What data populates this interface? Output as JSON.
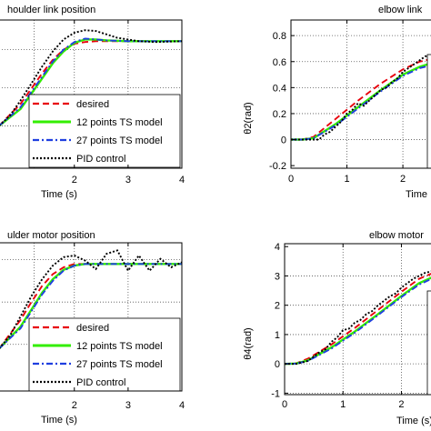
{
  "colors": {
    "desired": "#e8000b",
    "ts12": "#33ee00",
    "ts27": "#1f3fe0",
    "pid": "#000000",
    "grid": "#555555"
  },
  "chart_data": [
    {
      "type": "line",
      "title": "houlder link position",
      "xlabel": "Time (s)",
      "ylabel": "",
      "x_ticks": [
        "2",
        "3",
        "4"
      ],
      "y_ticks": [],
      "xlim": [
        0.6,
        4
      ],
      "ylim": [
        -0.5,
        1.25
      ],
      "grid": true,
      "legend": {
        "placement": "bottom-right",
        "entries": [
          "desired",
          "12 points TS model",
          "27 points TS model",
          "PID control"
        ]
      },
      "series": [
        {
          "name": "desired",
          "style": "dashed",
          "color_key": "desired",
          "x": [
            0.6,
            1.0,
            1.2,
            1.4,
            1.6,
            1.8,
            2.0,
            2.2,
            2.4,
            2.6,
            3.0,
            3.5,
            4.0
          ],
          "y": [
            0.0,
            0.26,
            0.44,
            0.62,
            0.78,
            0.9,
            0.97,
            0.99,
            1.0,
            1.0,
            1.0,
            1.0,
            1.0
          ]
        },
        {
          "name": "12 points TS model",
          "style": "solid",
          "color_key": "ts12",
          "x": [
            0.6,
            1.0,
            1.2,
            1.4,
            1.6,
            1.8,
            2.0,
            2.2,
            2.4,
            2.6,
            3.0,
            3.5,
            4.0
          ],
          "y": [
            0.0,
            0.2,
            0.38,
            0.56,
            0.74,
            0.88,
            0.98,
            1.02,
            1.02,
            1.01,
            1.0,
            1.0,
            1.0
          ]
        },
        {
          "name": "27 points TS model",
          "style": "dashdot",
          "color_key": "ts27",
          "x": [
            0.6,
            1.0,
            1.2,
            1.4,
            1.6,
            1.8,
            2.0,
            2.2,
            2.4,
            2.6,
            3.0,
            3.5,
            4.0
          ],
          "y": [
            0.0,
            0.22,
            0.4,
            0.58,
            0.76,
            0.9,
            0.99,
            1.03,
            1.02,
            1.01,
            1.0,
            1.0,
            1.0
          ]
        },
        {
          "name": "PID control",
          "style": "dotted",
          "color_key": "pid",
          "x": [
            0.6,
            0.8,
            1.0,
            1.2,
            1.4,
            1.6,
            1.8,
            2.0,
            2.2,
            2.4,
            2.6,
            2.8,
            3.0,
            3.2,
            3.5,
            4.0
          ],
          "y": [
            0.0,
            0.12,
            0.3,
            0.5,
            0.7,
            0.88,
            1.02,
            1.1,
            1.13,
            1.12,
            1.08,
            1.04,
            1.02,
            1.0,
            0.99,
            1.0
          ]
        }
      ]
    },
    {
      "type": "line",
      "title": "elbow link",
      "xlabel": "Time",
      "ylabel": "θ2(rad)",
      "x_ticks": [
        "0",
        "1",
        "2"
      ],
      "y_ticks": [
        "-0.2",
        "0",
        "0.2",
        "0.4",
        "0.6",
        "0.8"
      ],
      "xlim": [
        0,
        2.6
      ],
      "ylim": [
        -0.22,
        0.92
      ],
      "grid": true,
      "legend": {
        "placement": "right",
        "entries": []
      },
      "series": [
        {
          "name": "desired",
          "style": "dashed",
          "color_key": "desired",
          "x": [
            0,
            0.2,
            0.4,
            0.8,
            1.2,
            1.6,
            2.0,
            2.3,
            2.6
          ],
          "y": [
            0,
            0,
            0.02,
            0.16,
            0.3,
            0.43,
            0.54,
            0.6,
            0.63
          ]
        },
        {
          "name": "12 points TS model",
          "style": "solid",
          "color_key": "ts12",
          "x": [
            0,
            0.2,
            0.4,
            0.8,
            1.2,
            1.6,
            2.0,
            2.3,
            2.6
          ],
          "y": [
            0,
            0,
            0.01,
            0.12,
            0.25,
            0.38,
            0.5,
            0.56,
            0.6
          ]
        },
        {
          "name": "27 points TS model",
          "style": "dashdot",
          "color_key": "ts27",
          "x": [
            0,
            0.2,
            0.4,
            0.8,
            1.2,
            1.6,
            2.0,
            2.3,
            2.6
          ],
          "y": [
            0,
            0,
            0.01,
            0.11,
            0.24,
            0.37,
            0.49,
            0.55,
            0.58
          ]
        },
        {
          "name": "PID control",
          "style": "dotted",
          "color_key": "pid",
          "x": [
            0,
            0.3,
            0.5,
            0.6,
            0.7,
            0.8,
            0.9,
            1.0,
            1.1,
            1.2,
            1.3,
            1.4,
            1.5,
            1.6,
            1.7,
            1.8,
            1.9,
            2.0,
            2.2,
            2.4,
            2.6
          ],
          "y": [
            0,
            0,
            0.0,
            0.04,
            0.06,
            0.1,
            0.14,
            0.2,
            0.23,
            0.28,
            0.26,
            0.3,
            0.34,
            0.38,
            0.4,
            0.44,
            0.47,
            0.52,
            0.58,
            0.64,
            0.66
          ]
        }
      ]
    },
    {
      "type": "line",
      "title": "ulder motor position",
      "xlabel": "Time (s)",
      "ylabel": "",
      "x_ticks": [
        "2",
        "3",
        "4"
      ],
      "y_ticks": [],
      "xlim": [
        0.6,
        4
      ],
      "ylim": [
        -0.5,
        1.25
      ],
      "grid": true,
      "legend": {
        "placement": "bottom-right",
        "entries": [
          "desired",
          "12 points TS model",
          "27 points TS model",
          "PID control"
        ]
      },
      "series": [
        {
          "name": "desired",
          "style": "dashed",
          "color_key": "desired",
          "x": [
            0.6,
            1.0,
            1.2,
            1.4,
            1.6,
            1.8,
            2.0,
            2.2,
            2.4,
            3.0,
            3.5,
            4.0
          ],
          "y": [
            0.0,
            0.34,
            0.55,
            0.74,
            0.88,
            0.96,
            1.0,
            1.0,
            1.0,
            1.0,
            1.0,
            1.0
          ]
        },
        {
          "name": "12 points TS model",
          "style": "solid",
          "color_key": "ts12",
          "x": [
            0.6,
            1.0,
            1.2,
            1.4,
            1.6,
            1.8,
            2.0,
            2.2,
            2.4,
            3.0,
            3.5,
            4.0
          ],
          "y": [
            0.0,
            0.26,
            0.46,
            0.66,
            0.82,
            0.93,
            0.98,
            1.0,
            1.0,
            1.0,
            1.0,
            1.0
          ]
        },
        {
          "name": "27 points TS model",
          "style": "dashdot",
          "color_key": "ts27",
          "x": [
            0.6,
            1.0,
            1.2,
            1.4,
            1.6,
            1.8,
            2.0,
            2.2,
            2.4,
            3.0,
            3.5,
            4.0
          ],
          "y": [
            0.0,
            0.24,
            0.44,
            0.64,
            0.8,
            0.92,
            0.98,
            1.0,
            1.0,
            1.0,
            1.0,
            1.0
          ]
        },
        {
          "name": "PID control",
          "style": "dotted",
          "color_key": "pid",
          "x": [
            0.6,
            0.8,
            1.0,
            1.2,
            1.4,
            1.6,
            1.8,
            2.0,
            2.2,
            2.4,
            2.6,
            2.8,
            3.0,
            3.2,
            3.4,
            3.6,
            3.8,
            4.0
          ],
          "y": [
            0.0,
            0.15,
            0.38,
            0.62,
            0.82,
            0.98,
            1.08,
            1.1,
            1.04,
            0.94,
            1.12,
            1.16,
            0.92,
            1.1,
            0.92,
            1.06,
            0.96,
            1.02
          ]
        }
      ]
    },
    {
      "type": "line",
      "title": "elbow motor",
      "xlabel": "Time (s)",
      "ylabel": "θ4(rad)",
      "x_ticks": [
        "0",
        "1",
        "2"
      ],
      "y_ticks": [
        "-1",
        "0",
        "1",
        "2",
        "3",
        "4"
      ],
      "xlim": [
        0,
        2.6
      ],
      "ylim": [
        -1.05,
        4.1
      ],
      "grid": true,
      "legend": {
        "placement": "right",
        "entries": []
      },
      "series": [
        {
          "name": "desired",
          "style": "dashed",
          "color_key": "desired",
          "x": [
            0,
            0.2,
            0.4,
            0.8,
            1.2,
            1.6,
            2.0,
            2.3,
            2.6
          ],
          "y": [
            0,
            0.02,
            0.18,
            0.66,
            1.22,
            1.84,
            2.46,
            2.9,
            3.15
          ]
        },
        {
          "name": "12 points TS model",
          "style": "solid",
          "color_key": "ts12",
          "x": [
            0,
            0.2,
            0.4,
            0.8,
            1.2,
            1.6,
            2.0,
            2.3,
            2.6
          ],
          "y": [
            0,
            0.01,
            0.12,
            0.56,
            1.1,
            1.7,
            2.32,
            2.75,
            3.02
          ]
        },
        {
          "name": "27 points TS model",
          "style": "dashdot",
          "color_key": "ts27",
          "x": [
            0,
            0.2,
            0.4,
            0.8,
            1.2,
            1.6,
            2.0,
            2.3,
            2.6
          ],
          "y": [
            0,
            0.01,
            0.1,
            0.52,
            1.06,
            1.66,
            2.28,
            2.7,
            2.98
          ]
        },
        {
          "name": "PID control",
          "style": "dotted",
          "color_key": "pid",
          "x": [
            0,
            0.2,
            0.4,
            0.6,
            0.7,
            0.8,
            0.9,
            1.0,
            1.1,
            1.2,
            1.3,
            1.4,
            1.5,
            1.6,
            1.7,
            1.8,
            1.9,
            2.0,
            2.1,
            2.2,
            2.4,
            2.6
          ],
          "y": [
            0,
            0.0,
            0.1,
            0.4,
            0.5,
            0.75,
            0.9,
            1.15,
            1.2,
            1.4,
            1.5,
            1.7,
            1.8,
            2.0,
            2.15,
            2.3,
            2.4,
            2.6,
            2.75,
            2.9,
            3.1,
            3.2
          ]
        }
      ]
    }
  ]
}
